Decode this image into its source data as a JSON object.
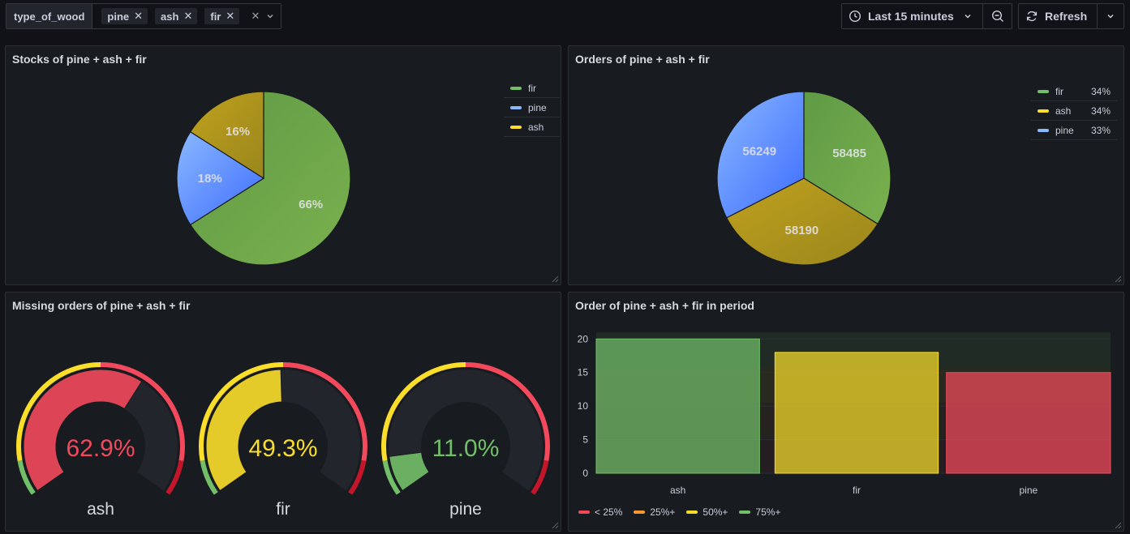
{
  "variable": {
    "label": "type_of_wood",
    "chips": [
      "pine",
      "ash",
      "fir"
    ]
  },
  "timepicker": {
    "range": "Last 15 minutes",
    "refresh": "Refresh"
  },
  "colors": {
    "green": "#73bf69",
    "blue": "#8ab8ff",
    "yellow": "#fade2a",
    "red": "#f2495c",
    "orange": "#ff9830"
  },
  "panels": {
    "stocks": {
      "title": "Stocks of pine + ash + fir",
      "legend": [
        {
          "name": "fir",
          "color": "#73bf69"
        },
        {
          "name": "pine",
          "color": "#8ab8ff"
        },
        {
          "name": "ash",
          "color": "#fade2a"
        }
      ],
      "slices": [
        {
          "name": "fir",
          "percent": 66,
          "label": "66%"
        },
        {
          "name": "pine",
          "percent": 18,
          "label": "18%"
        },
        {
          "name": "ash",
          "percent": 16,
          "label": "16%"
        }
      ]
    },
    "orders": {
      "title": "Orders of pine + ash + fir",
      "legend": [
        {
          "name": "fir",
          "color": "#73bf69",
          "pct": "34%"
        },
        {
          "name": "ash",
          "color": "#fade2a",
          "pct": "34%"
        },
        {
          "name": "pine",
          "color": "#8ab8ff",
          "pct": "33%"
        }
      ],
      "slices": [
        {
          "name": "fir",
          "value": 58485,
          "label": "58485"
        },
        {
          "name": "ash",
          "value": 58190,
          "label": "58190"
        },
        {
          "name": "pine",
          "value": 56249,
          "label": "56249"
        }
      ]
    },
    "missing": {
      "title": "Missing orders of pine + ash + fir",
      "gauges": [
        {
          "name": "ash",
          "value": 62.9,
          "label": "62.9%",
          "color": "#f2495c"
        },
        {
          "name": "fir",
          "value": 49.3,
          "label": "49.3%",
          "color": "#fade2a"
        },
        {
          "name": "pine",
          "value": 11.0,
          "label": "11.0%",
          "color": "#73bf69"
        }
      ]
    },
    "period": {
      "title": "Order of pine + ash + fir in period",
      "legend": [
        {
          "name": "< 25%",
          "color": "#f2495c"
        },
        {
          "name": "25%+",
          "color": "#ff9830"
        },
        {
          "name": "50%+",
          "color": "#fade2a"
        },
        {
          "name": "75%+",
          "color": "#73bf69"
        }
      ]
    }
  },
  "chart_data": [
    {
      "type": "pie",
      "title": "Stocks of pine + ash + fir",
      "categories": [
        "fir",
        "pine",
        "ash"
      ],
      "values": [
        66,
        18,
        16
      ],
      "unit": "percent"
    },
    {
      "type": "pie",
      "title": "Orders of pine + ash + fir",
      "categories": [
        "fir",
        "ash",
        "pine"
      ],
      "values": [
        58485,
        58190,
        56249
      ],
      "legend_percents": [
        "34%",
        "34%",
        "33%"
      ]
    },
    {
      "type": "bar",
      "title": "Order of pine + ash + fir in period",
      "categories": [
        "ash",
        "fir",
        "pine"
      ],
      "values": [
        20,
        18,
        15
      ],
      "yticks": [
        0,
        5,
        10,
        15,
        20
      ],
      "ylim": [
        0,
        21
      ],
      "legend": [
        "< 25%",
        "25%+",
        "50%+",
        "75%+"
      ]
    }
  ]
}
